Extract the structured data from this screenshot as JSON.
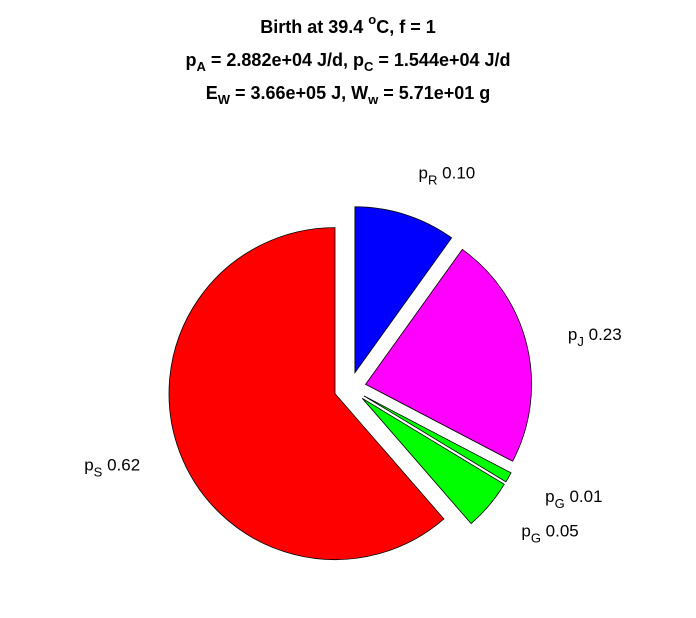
{
  "chart_data": {
    "type": "pie",
    "title": [
      [
        "Birth at 39.4 ",
        {
          "sup": "o"
        },
        "C, f = 1"
      ],
      [
        "p",
        {
          "sub": "A"
        },
        " = 2.882e+04 J/d, p",
        {
          "sub": "C"
        },
        " = 1.544e+04 J/d"
      ],
      [
        "E",
        {
          "sub": "W"
        },
        " = 3.66e+05 J, W",
        {
          "sub": "w"
        },
        " = 5.71e+01 g"
      ]
    ],
    "categories": [
      {
        "text": "p",
        "sub": "R"
      },
      {
        "text": "p",
        "sub": "J"
      },
      {
        "text": "p",
        "sub": "G"
      },
      {
        "text": "p",
        "sub": "G"
      },
      {
        "text": "p",
        "sub": "S"
      }
    ],
    "values": [
      0.1,
      0.23,
      0.01,
      0.05,
      0.62
    ],
    "value_labels": [
      "0.10",
      "0.23",
      "0.01",
      "0.05",
      "0.62"
    ],
    "colors": [
      "#0000ff",
      "#ff00ff",
      "#00ff00",
      "#00ff00",
      "#ff0000"
    ],
    "explode": true
  }
}
